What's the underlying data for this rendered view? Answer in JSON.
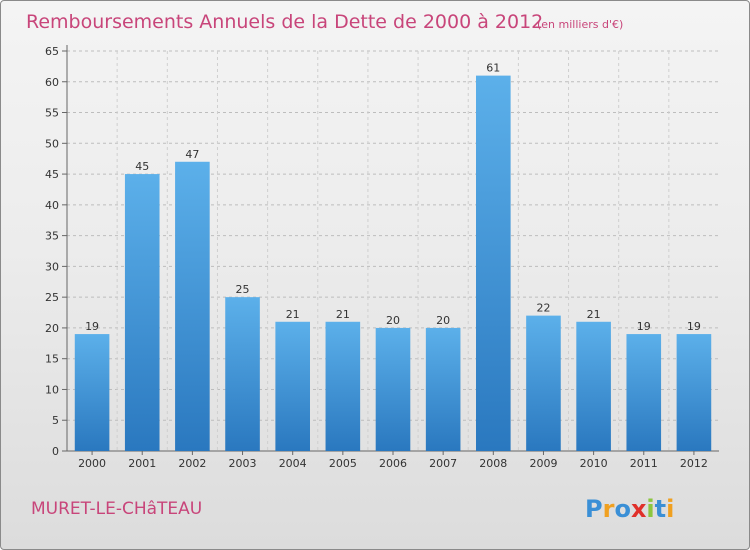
{
  "chart_data": {
    "type": "bar",
    "title": "Remboursements Annuels de la Dette de 2000 à 2012",
    "unit_note": "(en milliers d'€)",
    "categories": [
      "2000",
      "2001",
      "2002",
      "2003",
      "2004",
      "2005",
      "2006",
      "2007",
      "2008",
      "2009",
      "2010",
      "2011",
      "2012"
    ],
    "values": [
      19,
      45,
      47,
      25,
      21,
      21,
      20,
      20,
      61,
      22,
      21,
      19,
      19
    ],
    "xlabel": "",
    "ylabel": "",
    "ylim": [
      0,
      65
    ],
    "yticks": [
      0,
      5,
      10,
      15,
      20,
      25,
      30,
      35,
      40,
      45,
      50,
      55,
      60,
      65
    ],
    "grid": true,
    "legend": "none",
    "bar_color": "#3a8fd6"
  },
  "commune": "MURET-LE-CHâTEAU",
  "logo": {
    "text": "Proxiti",
    "letters": [
      {
        "ch": "P",
        "color": "#3a8fd6"
      },
      {
        "ch": "r",
        "color": "#f0a020"
      },
      {
        "ch": "o",
        "color": "#3a8fd6"
      },
      {
        "ch": "x",
        "color": "#e0302a"
      },
      {
        "ch": "i",
        "color": "#8cc63f"
      },
      {
        "ch": "t",
        "color": "#3a8fd6"
      },
      {
        "ch": "i",
        "color": "#f0a020"
      }
    ]
  },
  "colors": {
    "title": "#c8457a",
    "bar_top": "#5cb0ea",
    "bar_bottom": "#2a78bf"
  }
}
